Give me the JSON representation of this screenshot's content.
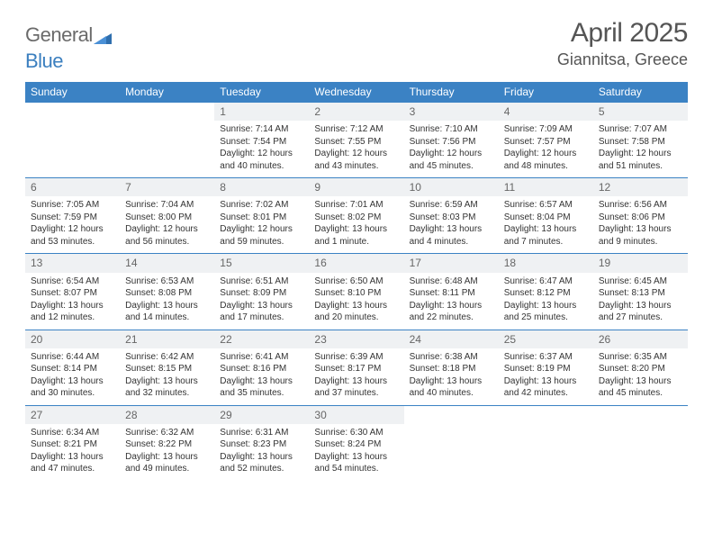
{
  "logo": {
    "word1": "General",
    "word2": "Blue"
  },
  "title": "April 2025",
  "location": "Giannitsa, Greece",
  "colors": {
    "header_bg": "#3b82c4",
    "header_text": "#ffffff",
    "daynum_bg": "#eff1f3",
    "daynum_text": "#666666",
    "border": "#3b82c4",
    "body_text": "#333333",
    "logo_gray": "#6a6a6a",
    "logo_blue": "#3b7fbf"
  },
  "typography": {
    "day_text_fontsize": 10,
    "daynum_fontsize": 12,
    "header_fontsize": 12,
    "title_fontsize": 30,
    "location_fontsize": 18
  },
  "columns": [
    "Sunday",
    "Monday",
    "Tuesday",
    "Wednesday",
    "Thursday",
    "Friday",
    "Saturday"
  ],
  "weeks": [
    [
      {
        "n": "",
        "sr": "",
        "ss": "",
        "dl": ""
      },
      {
        "n": "",
        "sr": "",
        "ss": "",
        "dl": ""
      },
      {
        "n": "1",
        "sr": "7:14 AM",
        "ss": "7:54 PM",
        "dl": "12 hours and 40 minutes."
      },
      {
        "n": "2",
        "sr": "7:12 AM",
        "ss": "7:55 PM",
        "dl": "12 hours and 43 minutes."
      },
      {
        "n": "3",
        "sr": "7:10 AM",
        "ss": "7:56 PM",
        "dl": "12 hours and 45 minutes."
      },
      {
        "n": "4",
        "sr": "7:09 AM",
        "ss": "7:57 PM",
        "dl": "12 hours and 48 minutes."
      },
      {
        "n": "5",
        "sr": "7:07 AM",
        "ss": "7:58 PM",
        "dl": "12 hours and 51 minutes."
      }
    ],
    [
      {
        "n": "6",
        "sr": "7:05 AM",
        "ss": "7:59 PM",
        "dl": "12 hours and 53 minutes."
      },
      {
        "n": "7",
        "sr": "7:04 AM",
        "ss": "8:00 PM",
        "dl": "12 hours and 56 minutes."
      },
      {
        "n": "8",
        "sr": "7:02 AM",
        "ss": "8:01 PM",
        "dl": "12 hours and 59 minutes."
      },
      {
        "n": "9",
        "sr": "7:01 AM",
        "ss": "8:02 PM",
        "dl": "13 hours and 1 minute."
      },
      {
        "n": "10",
        "sr": "6:59 AM",
        "ss": "8:03 PM",
        "dl": "13 hours and 4 minutes."
      },
      {
        "n": "11",
        "sr": "6:57 AM",
        "ss": "8:04 PM",
        "dl": "13 hours and 7 minutes."
      },
      {
        "n": "12",
        "sr": "6:56 AM",
        "ss": "8:06 PM",
        "dl": "13 hours and 9 minutes."
      }
    ],
    [
      {
        "n": "13",
        "sr": "6:54 AM",
        "ss": "8:07 PM",
        "dl": "13 hours and 12 minutes."
      },
      {
        "n": "14",
        "sr": "6:53 AM",
        "ss": "8:08 PM",
        "dl": "13 hours and 14 minutes."
      },
      {
        "n": "15",
        "sr": "6:51 AM",
        "ss": "8:09 PM",
        "dl": "13 hours and 17 minutes."
      },
      {
        "n": "16",
        "sr": "6:50 AM",
        "ss": "8:10 PM",
        "dl": "13 hours and 20 minutes."
      },
      {
        "n": "17",
        "sr": "6:48 AM",
        "ss": "8:11 PM",
        "dl": "13 hours and 22 minutes."
      },
      {
        "n": "18",
        "sr": "6:47 AM",
        "ss": "8:12 PM",
        "dl": "13 hours and 25 minutes."
      },
      {
        "n": "19",
        "sr": "6:45 AM",
        "ss": "8:13 PM",
        "dl": "13 hours and 27 minutes."
      }
    ],
    [
      {
        "n": "20",
        "sr": "6:44 AM",
        "ss": "8:14 PM",
        "dl": "13 hours and 30 minutes."
      },
      {
        "n": "21",
        "sr": "6:42 AM",
        "ss": "8:15 PM",
        "dl": "13 hours and 32 minutes."
      },
      {
        "n": "22",
        "sr": "6:41 AM",
        "ss": "8:16 PM",
        "dl": "13 hours and 35 minutes."
      },
      {
        "n": "23",
        "sr": "6:39 AM",
        "ss": "8:17 PM",
        "dl": "13 hours and 37 minutes."
      },
      {
        "n": "24",
        "sr": "6:38 AM",
        "ss": "8:18 PM",
        "dl": "13 hours and 40 minutes."
      },
      {
        "n": "25",
        "sr": "6:37 AM",
        "ss": "8:19 PM",
        "dl": "13 hours and 42 minutes."
      },
      {
        "n": "26",
        "sr": "6:35 AM",
        "ss": "8:20 PM",
        "dl": "13 hours and 45 minutes."
      }
    ],
    [
      {
        "n": "27",
        "sr": "6:34 AM",
        "ss": "8:21 PM",
        "dl": "13 hours and 47 minutes."
      },
      {
        "n": "28",
        "sr": "6:32 AM",
        "ss": "8:22 PM",
        "dl": "13 hours and 49 minutes."
      },
      {
        "n": "29",
        "sr": "6:31 AM",
        "ss": "8:23 PM",
        "dl": "13 hours and 52 minutes."
      },
      {
        "n": "30",
        "sr": "6:30 AM",
        "ss": "8:24 PM",
        "dl": "13 hours and 54 minutes."
      },
      {
        "n": "",
        "sr": "",
        "ss": "",
        "dl": ""
      },
      {
        "n": "",
        "sr": "",
        "ss": "",
        "dl": ""
      },
      {
        "n": "",
        "sr": "",
        "ss": "",
        "dl": ""
      }
    ]
  ],
  "labels": {
    "sunrise": "Sunrise:",
    "sunset": "Sunset:",
    "daylight": "Daylight:"
  }
}
